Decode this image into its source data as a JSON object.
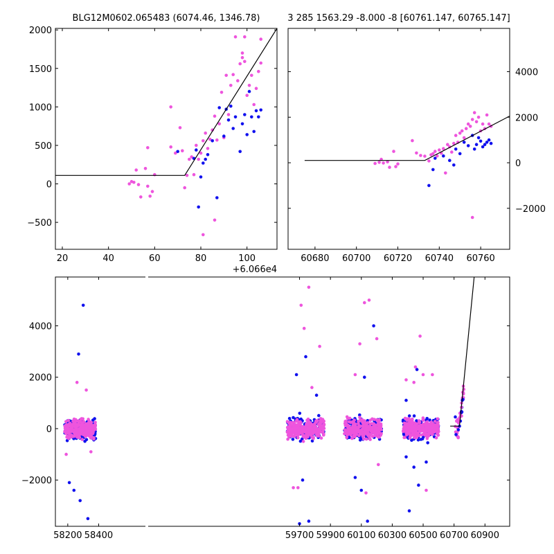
{
  "chart_data": [
    {
      "type": "scatter",
      "panel": "top-left",
      "title": "BLG12M0602.065483 (6074.46, 1346.78)",
      "xlim": [
        17,
        113
      ],
      "ylim": [
        -850,
        2020
      ],
      "x_offset_label": "+6.066e4",
      "xticks": [
        20,
        40,
        60,
        80,
        100
      ],
      "xtick_labels": [
        "20",
        "40",
        "60",
        "80",
        "100"
      ],
      "yticks": [
        -500,
        0,
        500,
        1000,
        1500,
        2000
      ],
      "ytick_labels": [
        "−500",
        "0",
        "500",
        "1000",
        "1500",
        "2000"
      ],
      "model_line": [
        [
          17,
          110
        ],
        [
          73,
          110
        ],
        [
          113,
          2020
        ]
      ],
      "series": [
        {
          "color": "#ee55dd",
          "points": [
            [
              49,
              0
            ],
            [
              50,
              30
            ],
            [
              51,
              20
            ],
            [
              52,
              180
            ],
            [
              53,
              -10
            ],
            [
              54,
              -170
            ],
            [
              56,
              200
            ],
            [
              57,
              470
            ],
            [
              57,
              -30
            ],
            [
              58,
              -160
            ],
            [
              59,
              -100
            ],
            [
              60,
              120
            ],
            [
              67,
              480
            ],
            [
              67,
              1000
            ],
            [
              69,
              400
            ],
            [
              71,
              730
            ],
            [
              72,
              430
            ],
            [
              73,
              -50
            ],
            [
              74,
              110
            ],
            [
              75,
              320
            ],
            [
              76,
              350
            ],
            [
              77,
              120
            ],
            [
              78,
              500
            ],
            [
              79,
              320
            ],
            [
              80,
              400
            ],
            [
              81,
              560
            ],
            [
              81,
              -660
            ],
            [
              82,
              660
            ],
            [
              83,
              460
            ],
            [
              84,
              580
            ],
            [
              85,
              700
            ],
            [
              86,
              -470
            ],
            [
              86,
              880
            ],
            [
              87,
              570
            ],
            [
              88,
              780
            ],
            [
              89,
              1190
            ],
            [
              90,
              600
            ],
            [
              91,
              1410
            ],
            [
              92,
              900
            ],
            [
              93,
              1280
            ],
            [
              94,
              1420
            ],
            [
              95,
              1910
            ],
            [
              96,
              1340
            ],
            [
              97,
              1560
            ],
            [
              98,
              1640
            ],
            [
              98,
              1700
            ],
            [
              99,
              1590
            ],
            [
              99,
              1910
            ],
            [
              100,
              1150
            ],
            [
              101,
              1280
            ],
            [
              102,
              1410
            ],
            [
              103,
              1030
            ],
            [
              104,
              1240
            ],
            [
              105,
              1460
            ],
            [
              106,
              1570
            ],
            [
              106,
              1880
            ]
          ]
        },
        {
          "color": "#1111ee",
          "points": [
            [
              70,
              420
            ],
            [
              77,
              330
            ],
            [
              78,
              440
            ],
            [
              79,
              -300
            ],
            [
              80,
              90
            ],
            [
              81,
              270
            ],
            [
              82,
              320
            ],
            [
              83,
              380
            ],
            [
              85,
              560
            ],
            [
              87,
              -180
            ],
            [
              88,
              990
            ],
            [
              90,
              620
            ],
            [
              91,
              970
            ],
            [
              92,
              830
            ],
            [
              93,
              1010
            ],
            [
              94,
              720
            ],
            [
              95,
              870
            ],
            [
              97,
              420
            ],
            [
              98,
              780
            ],
            [
              99,
              900
            ],
            [
              100,
              640
            ],
            [
              101,
              1200
            ],
            [
              102,
              870
            ],
            [
              103,
              680
            ],
            [
              104,
              950
            ],
            [
              105,
              870
            ],
            [
              106,
              960
            ]
          ]
        }
      ]
    },
    {
      "type": "scatter",
      "panel": "top-right",
      "title": "3 285 1563.29 -8.000 -8 [60761.147, 60765.147]",
      "xlim": [
        60667,
        60774
      ],
      "ylim": [
        -3800,
        5900
      ],
      "xticks": [
        60680,
        60700,
        60720,
        60740,
        60760
      ],
      "xtick_labels": [
        "60680",
        "60700",
        "60720",
        "60740",
        "60760"
      ],
      "yticks": [
        -2000,
        0,
        2000,
        4000
      ],
      "ytick_labels": [
        "−2000",
        "0",
        "2000",
        "4000"
      ],
      "model_line": [
        [
          60675,
          100
        ],
        [
          60733,
          100
        ],
        [
          60774,
          2050
        ]
      ],
      "series": [
        {
          "color": "#ee55dd",
          "points": [
            [
              60709,
              -30
            ],
            [
              60711,
              20
            ],
            [
              60712,
              150
            ],
            [
              60713,
              -10
            ],
            [
              60715,
              40
            ],
            [
              60716,
              -200
            ],
            [
              60718,
              500
            ],
            [
              60719,
              -170
            ],
            [
              60720,
              -50
            ],
            [
              60727,
              970
            ],
            [
              60729,
              430
            ],
            [
              60731,
              320
            ],
            [
              60733,
              290
            ],
            [
              60735,
              80
            ],
            [
              60736,
              350
            ],
            [
              60737,
              400
            ],
            [
              60738,
              500
            ],
            [
              60739,
              300
            ],
            [
              60740,
              560
            ],
            [
              60741,
              420
            ],
            [
              60742,
              620
            ],
            [
              60743,
              -450
            ],
            [
              60744,
              800
            ],
            [
              60745,
              700
            ],
            [
              60746,
              470
            ],
            [
              60747,
              850
            ],
            [
              60748,
              1200
            ],
            [
              60749,
              900
            ],
            [
              60750,
              1300
            ],
            [
              60751,
              1400
            ],
            [
              60752,
              1100
            ],
            [
              60753,
              1500
            ],
            [
              60754,
              1700
            ],
            [
              60755,
              1600
            ],
            [
              60756,
              1900
            ],
            [
              60756,
              -2400
            ],
            [
              60757,
              2200
            ],
            [
              60758,
              1800
            ],
            [
              60759,
              2000
            ],
            [
              60760,
              1400
            ],
            [
              60761,
              1700
            ],
            [
              60762,
              1500
            ],
            [
              60763,
              2100
            ],
            [
              60764,
              1700
            ],
            [
              60765,
              1600
            ]
          ]
        },
        {
          "color": "#1111ee",
          "points": [
            [
              60735,
              -1000
            ],
            [
              60737,
              -300
            ],
            [
              60738,
              200
            ],
            [
              60742,
              300
            ],
            [
              60745,
              100
            ],
            [
              60747,
              -100
            ],
            [
              60748,
              600
            ],
            [
              60750,
              400
            ],
            [
              60752,
              900
            ],
            [
              60754,
              750
            ],
            [
              60756,
              1200
            ],
            [
              60757,
              600
            ],
            [
              60758,
              800
            ],
            [
              60759,
              1100
            ],
            [
              60760,
              950
            ],
            [
              60761,
              700
            ],
            [
              60762,
              800
            ],
            [
              60763,
              900
            ],
            [
              60764,
              1000
            ],
            [
              60765,
              850
            ]
          ]
        }
      ]
    },
    {
      "type": "scatter",
      "panel": "bottom",
      "xlim": [
        58120,
        61060
      ],
      "ylim": [
        -3800,
        5900
      ],
      "xticks": [
        58200,
        58400,
        59700,
        59900,
        60100,
        60300,
        60500,
        60700,
        60900
      ],
      "xtick_labels": [
        "58200",
        "58400",
        "59700",
        "59900",
        "60100",
        "60300",
        "60500",
        "60700",
        "60900"
      ],
      "yticks": [
        -2000,
        0,
        2000,
        4000
      ],
      "ytick_labels": [
        "−2000",
        "0",
        "2000",
        "4000"
      ],
      "model_line": [
        [
          60675,
          100
        ],
        [
          60735,
          100
        ],
        [
          60830,
          5900
        ]
      ],
      "seasons": [
        {
          "x_start": 58180,
          "x_end": 58380,
          "blue_outliers": [
            [
              58240,
              -2400
            ],
            [
              58270,
              2900
            ],
            [
              58300,
              4800
            ],
            [
              58330,
              -3500
            ],
            [
              58280,
              -2800
            ],
            [
              58210,
              -2100
            ]
          ],
          "pink_outliers": [
            [
              58260,
              1800
            ],
            [
              58320,
              1500
            ],
            [
              58190,
              -1000
            ],
            [
              58350,
              -900
            ]
          ]
        },
        {
          "x_start": 59620,
          "x_end": 59860,
          "blue_outliers": [
            [
              59680,
              2100
            ],
            [
              59720,
              -2000
            ],
            [
              59740,
              2800
            ],
            [
              59760,
              -3600
            ],
            [
              59700,
              -3700
            ],
            [
              59810,
              1300
            ]
          ],
          "pink_outliers": [
            [
              59710,
              4800
            ],
            [
              59730,
              3900
            ],
            [
              59760,
              5500
            ],
            [
              59830,
              3200
            ],
            [
              59780,
              1600
            ],
            [
              59660,
              -2300
            ],
            [
              59690,
              -2300
            ]
          ]
        },
        {
          "x_start": 59990,
          "x_end": 60230,
          "blue_outliers": [
            [
              60060,
              -1900
            ],
            [
              60100,
              -2400
            ],
            [
              60140,
              -3600
            ],
            [
              60180,
              4000
            ],
            [
              60120,
              2000
            ]
          ],
          "pink_outliers": [
            [
              60090,
              3300
            ],
            [
              60120,
              4900
            ],
            [
              60150,
              5000
            ],
            [
              60200,
              3500
            ],
            [
              60130,
              -2500
            ],
            [
              60210,
              -1400
            ],
            [
              60060,
              2100
            ]
          ]
        },
        {
          "x_start": 60370,
          "x_end": 60600,
          "blue_outliers": [
            [
              60390,
              -1100
            ],
            [
              60410,
              -3200
            ],
            [
              60440,
              -1500
            ],
            [
              60470,
              -2200
            ],
            [
              60460,
              2300
            ],
            [
              60520,
              -1300
            ],
            [
              60390,
              1100
            ]
          ],
          "pink_outliers": [
            [
              60450,
              2400
            ],
            [
              60480,
              3600
            ],
            [
              60500,
              2100
            ],
            [
              60560,
              2100
            ],
            [
              60520,
              -2400
            ],
            [
              60390,
              1900
            ],
            [
              60440,
              1800
            ]
          ]
        },
        {
          "x_start": 60708,
          "x_end": 60765,
          "ramp": true
        }
      ]
    }
  ]
}
